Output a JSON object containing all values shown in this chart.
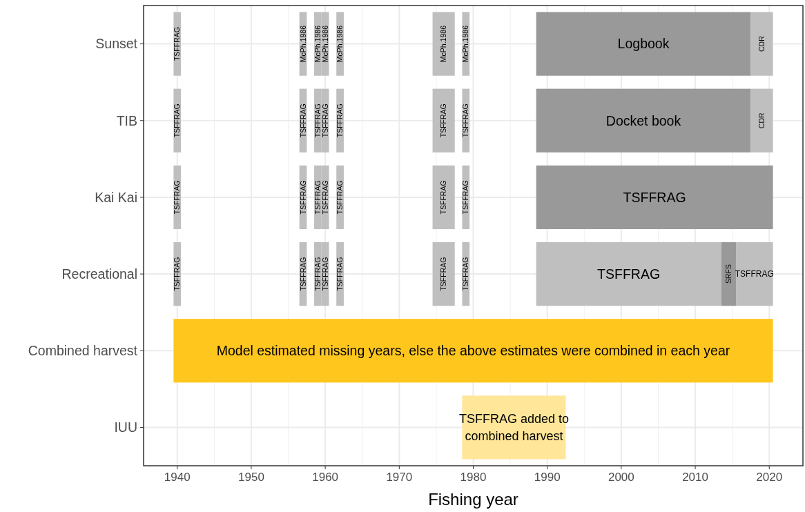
{
  "chart_data": {
    "type": "bar",
    "orientation": "horizontal",
    "categories": [
      "Sunset",
      "TIB",
      "Kai Kai",
      "Recreational",
      "Combined harvest",
      "IUU"
    ],
    "xlabel": "Fishing year",
    "xlim": [
      1935.45,
      2024.55
    ],
    "xticks": [
      1940,
      1950,
      1960,
      1970,
      1980,
      1990,
      2000,
      2010,
      2020
    ],
    "grid": true,
    "series": [
      {
        "color": "#bfbfbf",
        "values": [
          1,
          1,
          1,
          1,
          null,
          null
        ],
        "base": [
          1939.5,
          1939.5,
          1939.5,
          1939.5,
          null,
          null
        ],
        "value_labels": [
          "TSFFRAG",
          "TSFFRAG",
          "TSFFRAG",
          "TSFFRAG",
          null,
          null
        ]
      },
      {
        "color": "#bfbfbf",
        "values": [
          1,
          1,
          1,
          1,
          null,
          null
        ],
        "base": [
          1956.5,
          1956.5,
          1956.5,
          1956.5,
          null,
          null
        ],
        "value_labels": [
          "McPh.1986",
          "TSFFRAG",
          "TSFFRAG",
          "TSFFRAG",
          null,
          null
        ]
      },
      {
        "color": "#bfbfbf",
        "values": [
          1,
          1,
          1,
          1,
          null,
          null
        ],
        "base": [
          1958.5,
          1958.5,
          1958.5,
          1958.5,
          null,
          null
        ],
        "value_labels": [
          "McPh.1986",
          "TSFFRAG",
          "TSFFRAG",
          "TSFFRAG",
          null,
          null
        ]
      },
      {
        "color": "#bfbfbf",
        "values": [
          1,
          1,
          1,
          1,
          null,
          null
        ],
        "base": [
          1959.5,
          1959.5,
          1959.5,
          1959.5,
          null,
          null
        ],
        "value_labels": [
          "McPh.1986",
          "TSFFRAG",
          "TSFFRAG",
          "TSFFRAG",
          null,
          null
        ]
      },
      {
        "color": "#bfbfbf",
        "values": [
          1,
          1,
          1,
          1,
          null,
          null
        ],
        "base": [
          1961.5,
          1961.5,
          1961.5,
          1961.5,
          null,
          null
        ],
        "value_labels": [
          "McPh.1986",
          "TSFFRAG",
          "TSFFRAG",
          "TSFFRAG",
          null,
          null
        ]
      },
      {
        "color": "#bfbfbf",
        "values": [
          3,
          3,
          3,
          3,
          null,
          null
        ],
        "base": [
          1974.5,
          1974.5,
          1974.5,
          1974.5,
          null,
          null
        ],
        "value_labels": [
          "McPh.1986",
          "TSFFRAG",
          "TSFFRAG",
          "TSFFRAG",
          null,
          null
        ]
      },
      {
        "color": "#bfbfbf",
        "values": [
          1,
          1,
          1,
          1,
          null,
          null
        ],
        "base": [
          1978.5,
          1978.5,
          1978.5,
          1978.5,
          null,
          null
        ],
        "value_labels": [
          "McPh.1986",
          "TSFFRAG",
          "TSFFRAG",
          "TSFFRAG",
          null,
          null
        ]
      },
      {
        "colors": [
          "#999999",
          "#999999",
          "#999999",
          "#bfbfbf",
          null,
          null
        ],
        "values": [
          29,
          29,
          32,
          25,
          null,
          null
        ],
        "base": [
          1988.5,
          1988.5,
          1988.5,
          1988.5,
          null,
          null
        ],
        "value_labels": [
          "Logbook",
          "Docket book",
          "TSFFRAG",
          "TSFFRAG",
          null,
          null
        ]
      },
      {
        "colors": [
          "#bfbfbf",
          "#bfbfbf",
          null,
          "#999999",
          null,
          null
        ],
        "values": [
          3,
          3,
          null,
          2,
          null,
          null
        ],
        "base": [
          2017.5,
          2017.5,
          null,
          2013.5,
          null,
          null
        ],
        "value_labels": [
          "CDR",
          "CDR",
          null,
          "SRFS",
          null,
          null
        ]
      },
      {
        "color": "#bfbfbf",
        "values": [
          null,
          null,
          null,
          5,
          null,
          null
        ],
        "base": [
          null,
          null,
          null,
          2015.5,
          null,
          null
        ],
        "value_labels": [
          null,
          null,
          null,
          "TSFFRAG",
          null,
          null
        ]
      },
      {
        "colors": [
          null,
          null,
          null,
          null,
          "#ffc61e",
          "#ffe699"
        ],
        "values": [
          null,
          null,
          null,
          null,
          81,
          14
        ],
        "base": [
          null,
          null,
          null,
          null,
          1939.5,
          1978.5
        ],
        "value_labels": [
          null,
          null,
          null,
          null,
          "Model estimated missing years, else the above estimates were combined in each year",
          "TSFFRAG added to combined harvest"
        ]
      }
    ]
  }
}
